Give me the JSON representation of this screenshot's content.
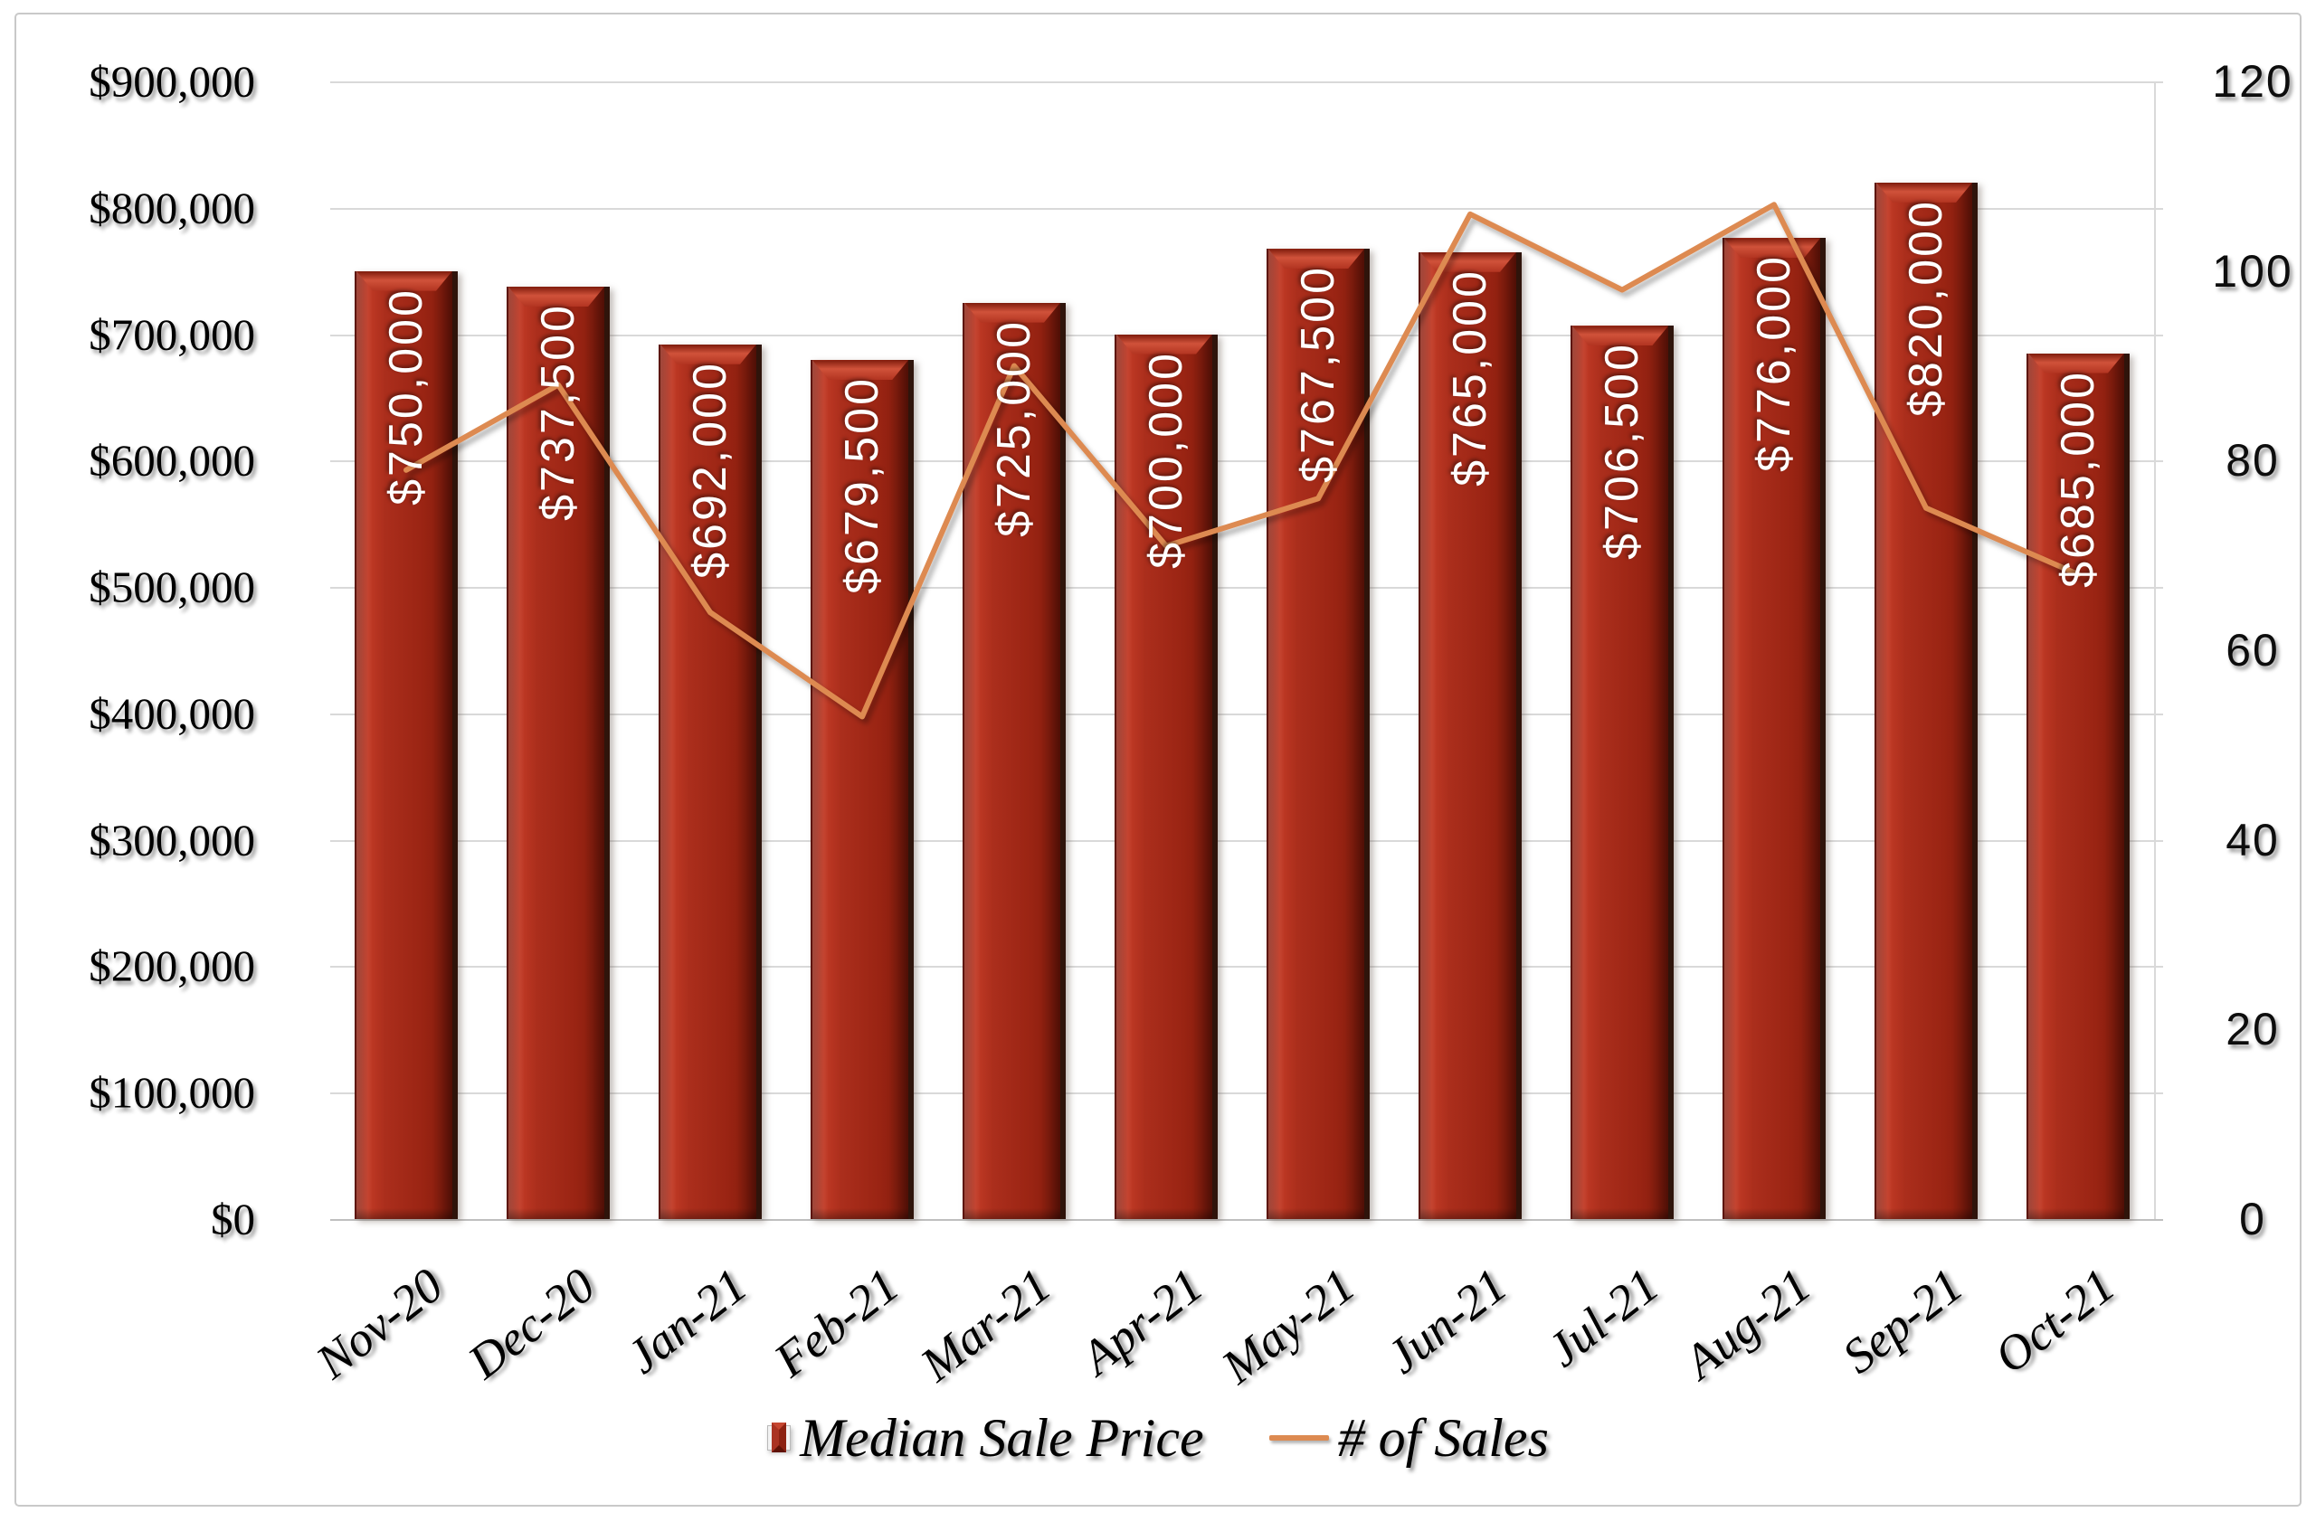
{
  "chart_data": {
    "type": "combo-bar-line",
    "categories": [
      "Nov-20",
      "Dec-20",
      "Jan-21",
      "Feb-21",
      "Mar-21",
      "Apr-21",
      "May-21",
      "Jun-21",
      "Jul-21",
      "Aug-21",
      "Sep-21",
      "Oct-21"
    ],
    "series": [
      {
        "name": "Median Sale Price",
        "type": "bar",
        "values": [
          750000,
          737500,
          692000,
          679500,
          725000,
          700000,
          767500,
          765000,
          706500,
          776000,
          820000,
          685000
        ],
        "labels": [
          "$750,000",
          "$737,500",
          "$692,000",
          "$679,500",
          "$725,000",
          "$700,000",
          "$767,500",
          "$765,000",
          "$706,500",
          "$776,000",
          "$820,000",
          "$685,000"
        ],
        "color": "#9E2715"
      },
      {
        "name": "# of Sales",
        "type": "line",
        "values": [
          79,
          88,
          64,
          53,
          90,
          71,
          76,
          106,
          98,
          107,
          75,
          68
        ],
        "color": "#DD8A51"
      }
    ],
    "left_axis": {
      "ticks": [
        "$900,000",
        "$800,000",
        "$700,000",
        "$600,000",
        "$500,000",
        "$400,000",
        "$300,000",
        "$200,000",
        "$100,000",
        "$0"
      ],
      "min": 0,
      "max": 900000
    },
    "right_axis": {
      "ticks": [
        "120",
        "100",
        "80",
        "60",
        "40",
        "20",
        "0"
      ],
      "min": 0,
      "max": 120
    },
    "grid": true,
    "legend_position": "bottom",
    "colors": {
      "bar": "#9E2715",
      "line": "#DD8A51",
      "gridline": "#D9D9D9",
      "axis_line": "#BFBFBF",
      "bar_label_text": "#FFFFFF"
    }
  },
  "legend": {
    "bar_label": "Median Sale Price",
    "line_label": "# of Sales"
  }
}
